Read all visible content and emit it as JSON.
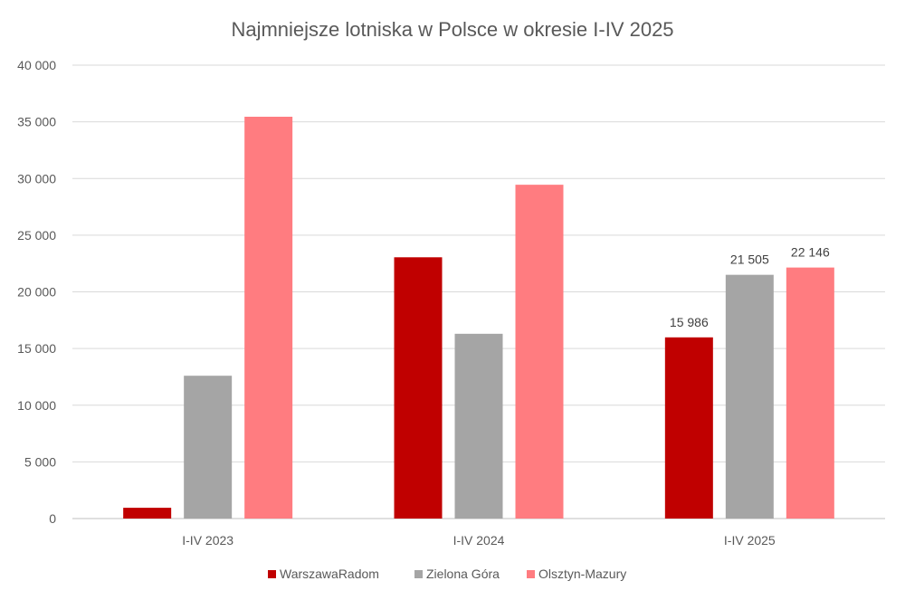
{
  "chart_data": {
    "type": "bar",
    "title": "Najmniejsze lotniska w Polsce w okresie I-IV 2025",
    "xlabel": "",
    "ylabel": "",
    "categories": [
      "I-IV 2023",
      "I-IV 2024",
      "I-IV 2025"
    ],
    "ylim": [
      0,
      40000
    ],
    "yticks": [
      0,
      5000,
      10000,
      15000,
      20000,
      25000,
      30000,
      35000,
      40000
    ],
    "ytick_labels": [
      "0",
      "5 000",
      "10 000",
      "15 000",
      "20 000",
      "25 000",
      "30 000",
      "35 000",
      "40 000"
    ],
    "grid": true,
    "legend_position": "bottom",
    "series": [
      {
        "name": "WarszawaRadom",
        "color": "#c00000",
        "values": [
          950,
          23050,
          15986
        ],
        "data_labels": [
          "",
          "",
          "15 986"
        ]
      },
      {
        "name": "Zielona Góra",
        "color": "#a5a5a5",
        "values": [
          12600,
          16300,
          21505
        ],
        "data_labels": [
          "",
          "",
          "21 505"
        ]
      },
      {
        "name": "Olsztyn-Mazury",
        "color": "#ff7c80",
        "values": [
          35450,
          29450,
          22146
        ],
        "data_labels": [
          "",
          "",
          "22 146"
        ]
      }
    ]
  }
}
